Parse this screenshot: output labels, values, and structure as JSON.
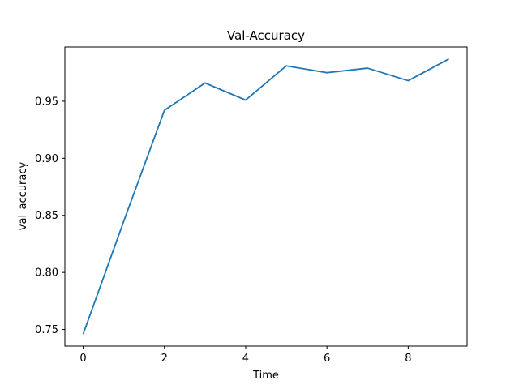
{
  "chart_data": {
    "type": "line",
    "title": "Val-Accuracy",
    "xlabel": "Time",
    "ylabel": "val_accuracy",
    "x": [
      0,
      1,
      2,
      3,
      4,
      5,
      6,
      7,
      8,
      9
    ],
    "series": [
      {
        "values": [
          0.746,
          0.845,
          0.942,
          0.966,
          0.951,
          0.981,
          0.975,
          0.979,
          0.968,
          0.987
        ],
        "color": "#1f77b4"
      }
    ],
    "xlim": [
      -0.45,
      9.45
    ],
    "ylim": [
      0.7355,
      0.9975
    ],
    "xticks": [
      0,
      2,
      4,
      6,
      8
    ],
    "xtick_labels": [
      "0",
      "2",
      "4",
      "6",
      "8"
    ],
    "yticks": [
      0.75,
      0.8,
      0.85,
      0.9,
      0.95
    ],
    "ytick_labels": [
      "0.75",
      "0.80",
      "0.85",
      "0.90",
      "0.95"
    ],
    "grid": false,
    "legend": false
  }
}
